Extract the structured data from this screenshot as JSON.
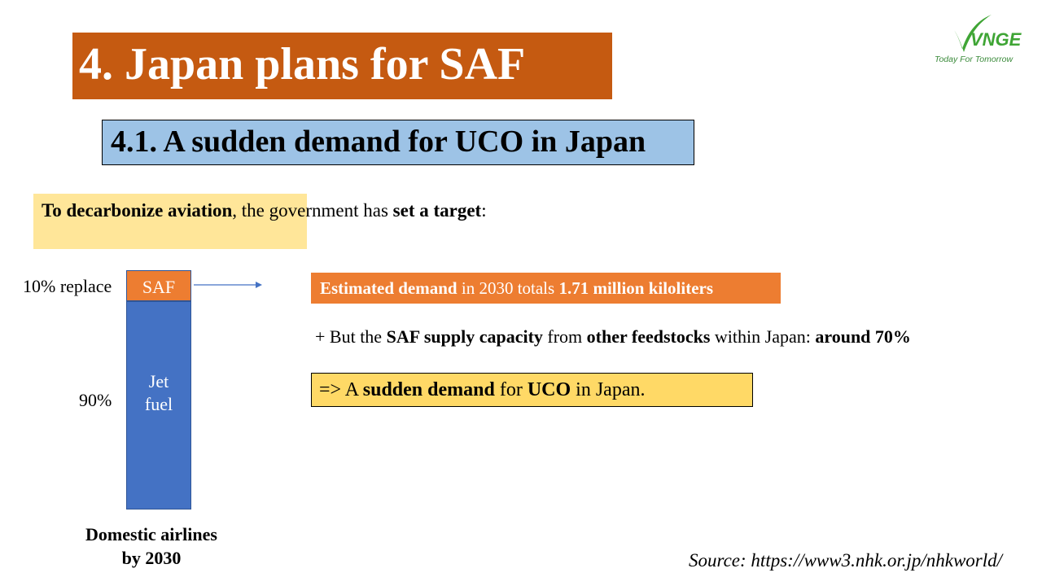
{
  "title": "4. Japan plans for SAF",
  "subtitle": "4.1. A sudden demand for UCO in Japan",
  "logo": {
    "name": "VNGE",
    "tagline": "Today For Tomorrow",
    "color": "#3FA535"
  },
  "target_note": {
    "bold_1": "To decarbonize aviation",
    "text_1": ", the government has ",
    "bold_2": "set a target",
    "text_2": ":"
  },
  "bar": {
    "saf_label": "SAF",
    "saf_share_label": "10% replace",
    "jet_label_line1": "Jet",
    "jet_label_line2": "fuel",
    "jet_share_label": "90%",
    "caption_line1": "Domestic airlines",
    "caption_line2": "by 2030",
    "saf_percent": 10,
    "jet_percent": 90
  },
  "demand": {
    "bold_1": "Estimated demand",
    "text_1": " in 2030 totals ",
    "bold_2": "1.71 million kiloliters"
  },
  "supply": {
    "text_1": "+ But the ",
    "bold_1": "SAF supply capacity",
    "text_2": " from ",
    "bold_2": "other feedstocks",
    "text_3": " within Japan: ",
    "bold_3": "around 70%"
  },
  "conclusion": {
    "text_1": "=> A ",
    "bold_1": "sudden demand",
    "text_2": " for ",
    "bold_2": "UCO",
    "text_3": " in Japan."
  },
  "source": "Source: https://www3.nhk.or.jp/nhkworld/",
  "colors": {
    "title_bg": "#C55A11",
    "subtitle_bg": "#9DC3E6",
    "target_bg": "#FFE699",
    "saf_orange": "#ED7D31",
    "jet_blue": "#4472C4",
    "conclusion_bg": "#FFD966"
  }
}
